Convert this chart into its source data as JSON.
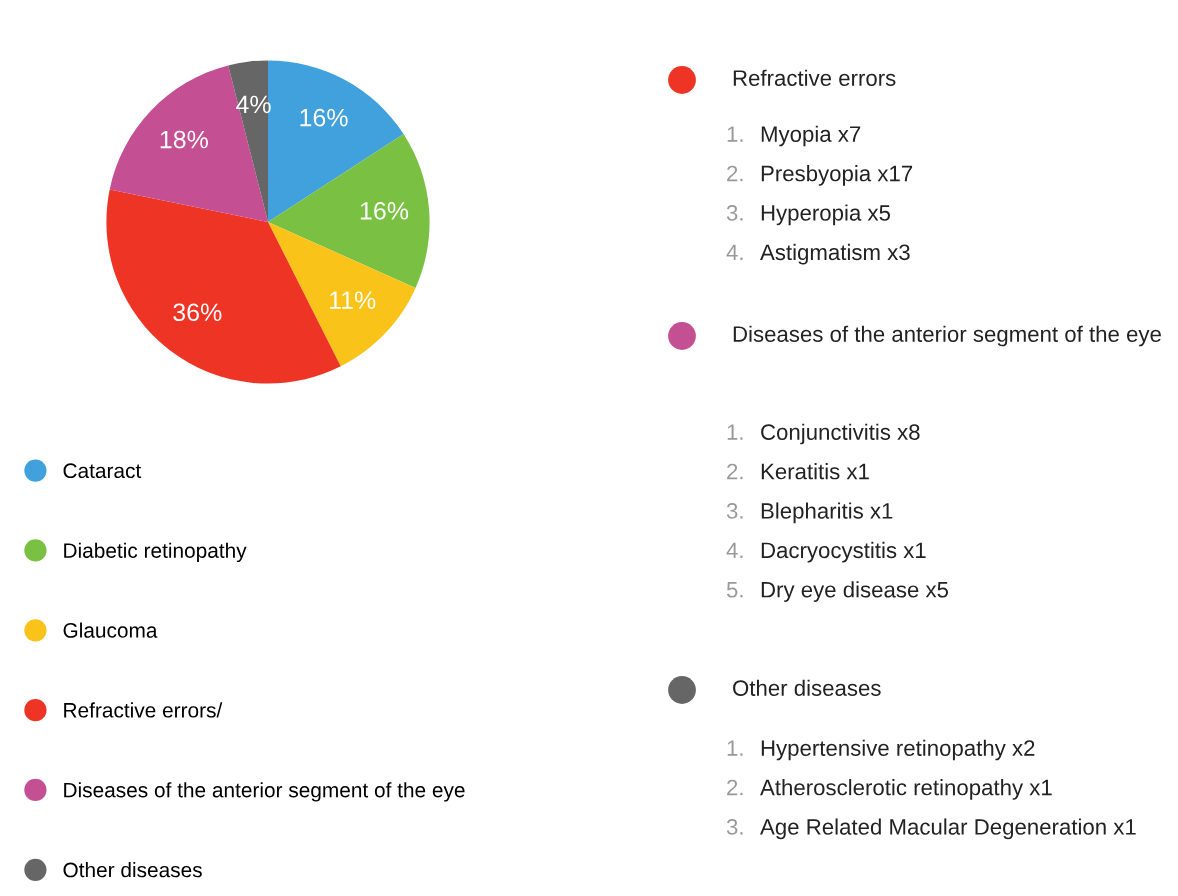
{
  "chart_data": {
    "type": "pie",
    "categories": [
      "Cataract",
      "Diabetic retinopathy",
      "Glaucoma",
      "Refractive errors/",
      "Diseases of the anterior segment of the eye",
      "Other diseases"
    ],
    "values": [
      16,
      16,
      11,
      36,
      18,
      4
    ],
    "colors": [
      "#40a1dc",
      "#7ac143",
      "#f9c31a",
      "#ee3424",
      "#c44f93",
      "#666666"
    ],
    "value_labels": [
      "16%",
      "16%",
      "11%",
      "36%",
      "18%",
      "4%"
    ],
    "legend": "bottom left",
    "annotations": [
      "Refractive errors",
      "1.",
      "Myopia x7",
      "2.",
      "Presbyopia x17",
      "3.",
      "Hyperopia x5",
      "4.",
      "Astigmatism x3",
      "Diseases of the anterior segment of the eye",
      "1.",
      "Conjunctivitis x8",
      "2.",
      "Keratitis x1",
      "3.",
      "Blepharitis x1",
      "4.",
      "Dacryocystitis x1",
      "5.",
      "Dry eye disease x5",
      "Other diseases",
      "1.",
      "Hypertensive retinopathy x2",
      "2.",
      "Atherosclerotic retinopathy x1",
      "3.",
      "Age Related Macular Degeneration x1"
    ]
  }
}
